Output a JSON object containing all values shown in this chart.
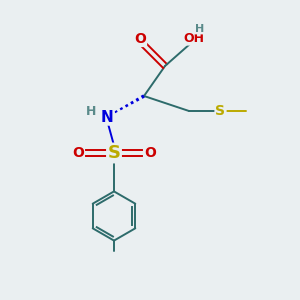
{
  "bg_color": "#eaeff1",
  "colors": {
    "O": "#cc0000",
    "N": "#0000dd",
    "S": "#bbaa00",
    "C": "#2d6b6b",
    "H": "#5a8a8a",
    "bond": "#2d6b6b"
  },
  "figsize": [
    3.0,
    3.0
  ],
  "dpi": 100
}
